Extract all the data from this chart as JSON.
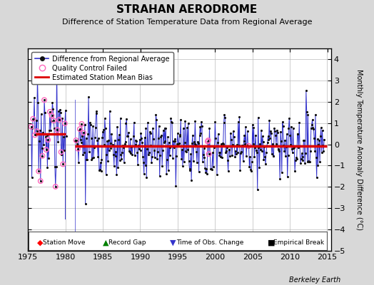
{
  "title": "STRAHAN AERODROME",
  "subtitle": "Difference of Station Temperature Data from Regional Average",
  "credit": "Berkeley Earth",
  "ylabel_right": "Monthly Temperature Anomaly Difference (°C)",
  "xlim": [
    1975,
    2015.5
  ],
  "ylim": [
    -5,
    4.5
  ],
  "yticks": [
    -5,
    -4,
    -3,
    -2,
    -1,
    0,
    1,
    2,
    3,
    4
  ],
  "xticks": [
    1975,
    1980,
    1985,
    1990,
    1995,
    2000,
    2005,
    2010,
    2015
  ],
  "bias_line_y": -0.07,
  "bias_line_color": "#dd0000",
  "line_color": "#3333cc",
  "dot_color": "#111111",
  "qc_fail_color": "#ff66bb",
  "background_color": "#d8d8d8",
  "plot_bg_color": "#ffffff",
  "grid_color": "#bbbbbb",
  "seed": 17,
  "start_year": 1975.42,
  "end_year": 2014.58,
  "n_per_year": 12,
  "gap_start": 1980.1,
  "gap_end": 1981.25,
  "early_bias": 0.55,
  "late_bias": -0.07,
  "break_year": 1981.3,
  "station_move_x": 1976.5,
  "record_gap_x": 1980.5,
  "time_obs_x": 1981.3,
  "empirical_break_x": 1982.8,
  "marker_y": -4.55,
  "deep_drop_x": 1979.92,
  "deep_drop_y": -3.5
}
